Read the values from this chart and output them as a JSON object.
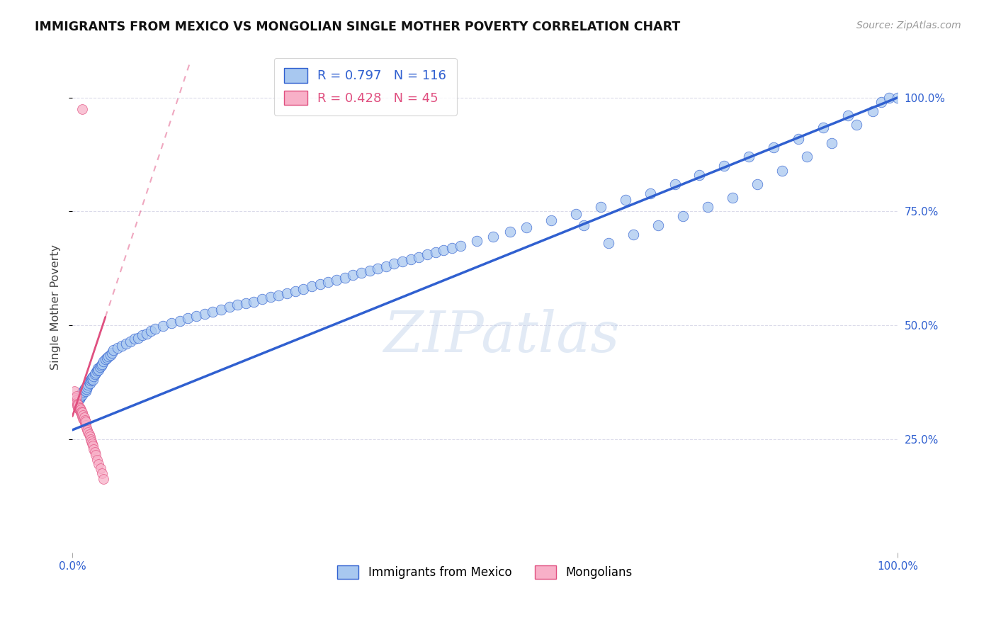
{
  "title": "IMMIGRANTS FROM MEXICO VS MONGOLIAN SINGLE MOTHER POVERTY CORRELATION CHART",
  "source": "Source: ZipAtlas.com",
  "ylabel": "Single Mother Poverty",
  "blue_R": 0.797,
  "blue_N": 116,
  "pink_R": 0.428,
  "pink_N": 45,
  "blue_scatter_color": "#a8c8f0",
  "pink_scatter_color": "#f8b0c8",
  "blue_line_color": "#3060d0",
  "pink_line_color": "#e05080",
  "watermark": "ZIPatlas",
  "background_color": "#ffffff",
  "grid_color": "#d8d8e8",
  "blue_line_x0": 0.0,
  "blue_line_y0": 0.27,
  "blue_line_x1": 1.0,
  "blue_line_y1": 1.0,
  "pink_line_x0": 0.0,
  "pink_line_y0": 0.3,
  "pink_line_x1": 0.055,
  "pink_line_y1": 0.6,
  "xlim": [
    0.0,
    1.0
  ],
  "ylim": [
    0.0,
    1.08
  ],
  "blue_scatter_x": [
    0.005,
    0.007,
    0.008,
    0.009,
    0.01,
    0.011,
    0.012,
    0.013,
    0.014,
    0.015,
    0.016,
    0.017,
    0.018,
    0.019,
    0.02,
    0.021,
    0.022,
    0.023,
    0.024,
    0.025,
    0.026,
    0.027,
    0.028,
    0.03,
    0.031,
    0.032,
    0.033,
    0.035,
    0.036,
    0.038,
    0.04,
    0.042,
    0.044,
    0.046,
    0.048,
    0.05,
    0.055,
    0.06,
    0.065,
    0.07,
    0.075,
    0.08,
    0.085,
    0.09,
    0.095,
    0.1,
    0.11,
    0.12,
    0.13,
    0.14,
    0.15,
    0.16,
    0.17,
    0.18,
    0.19,
    0.2,
    0.21,
    0.22,
    0.23,
    0.24,
    0.25,
    0.26,
    0.27,
    0.28,
    0.29,
    0.3,
    0.31,
    0.32,
    0.33,
    0.34,
    0.35,
    0.36,
    0.37,
    0.38,
    0.39,
    0.4,
    0.41,
    0.42,
    0.43,
    0.44,
    0.45,
    0.46,
    0.47,
    0.49,
    0.51,
    0.53,
    0.55,
    0.58,
    0.61,
    0.64,
    0.67,
    0.7,
    0.73,
    0.76,
    0.79,
    0.82,
    0.85,
    0.88,
    0.91,
    0.94,
    0.62,
    0.65,
    0.68,
    0.71,
    0.74,
    0.77,
    0.8,
    0.83,
    0.86,
    0.89,
    0.92,
    0.95,
    0.97,
    0.98,
    0.99,
    1.0
  ],
  "blue_scatter_y": [
    0.335,
    0.34,
    0.338,
    0.342,
    0.345,
    0.35,
    0.348,
    0.353,
    0.358,
    0.362,
    0.355,
    0.36,
    0.365,
    0.37,
    0.375,
    0.372,
    0.378,
    0.382,
    0.385,
    0.38,
    0.388,
    0.392,
    0.395,
    0.4,
    0.405,
    0.402,
    0.408,
    0.412,
    0.415,
    0.42,
    0.425,
    0.428,
    0.432,
    0.435,
    0.44,
    0.445,
    0.45,
    0.455,
    0.46,
    0.465,
    0.47,
    0.472,
    0.478,
    0.482,
    0.488,
    0.492,
    0.498,
    0.505,
    0.51,
    0.515,
    0.52,
    0.525,
    0.53,
    0.535,
    0.54,
    0.545,
    0.548,
    0.552,
    0.558,
    0.562,
    0.565,
    0.57,
    0.575,
    0.58,
    0.585,
    0.59,
    0.595,
    0.6,
    0.605,
    0.61,
    0.615,
    0.62,
    0.625,
    0.63,
    0.635,
    0.64,
    0.645,
    0.65,
    0.655,
    0.66,
    0.665,
    0.67,
    0.675,
    0.685,
    0.695,
    0.705,
    0.715,
    0.73,
    0.745,
    0.76,
    0.775,
    0.79,
    0.81,
    0.83,
    0.85,
    0.87,
    0.89,
    0.91,
    0.935,
    0.96,
    0.72,
    0.68,
    0.7,
    0.72,
    0.74,
    0.76,
    0.78,
    0.81,
    0.84,
    0.87,
    0.9,
    0.94,
    0.97,
    0.99,
    1.0,
    1.0
  ],
  "pink_scatter_x": [
    0.002,
    0.003,
    0.004,
    0.005,
    0.005,
    0.006,
    0.006,
    0.007,
    0.007,
    0.008,
    0.008,
    0.009,
    0.009,
    0.01,
    0.01,
    0.011,
    0.011,
    0.012,
    0.012,
    0.013,
    0.013,
    0.014,
    0.014,
    0.015,
    0.015,
    0.016,
    0.016,
    0.017,
    0.018,
    0.019,
    0.02,
    0.021,
    0.022,
    0.023,
    0.024,
    0.025,
    0.026,
    0.027,
    0.028,
    0.03,
    0.032,
    0.034,
    0.036,
    0.038,
    0.012
  ],
  "pink_scatter_y": [
    0.355,
    0.34,
    0.335,
    0.33,
    0.345,
    0.328,
    0.322,
    0.318,
    0.325,
    0.315,
    0.32,
    0.312,
    0.318,
    0.308,
    0.315,
    0.305,
    0.31,
    0.3,
    0.308,
    0.295,
    0.302,
    0.29,
    0.298,
    0.285,
    0.292,
    0.28,
    0.288,
    0.275,
    0.27,
    0.265,
    0.26,
    0.255,
    0.25,
    0.245,
    0.24,
    0.235,
    0.228,
    0.222,
    0.215,
    0.205,
    0.195,
    0.185,
    0.175,
    0.162,
    0.975
  ]
}
